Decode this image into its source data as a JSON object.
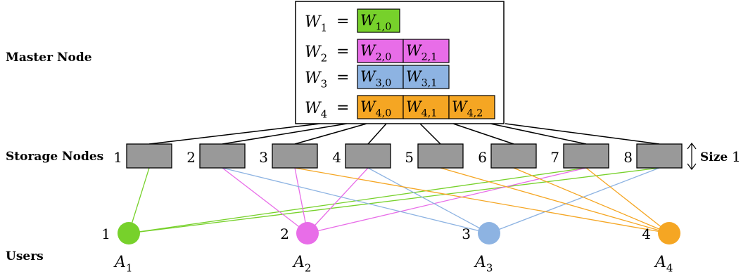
{
  "labels": {
    "master": "Master Node",
    "storage": "Storage Nodes",
    "users": "Users",
    "size_word": "Size",
    "size_value": "1"
  },
  "master_equations": [
    {
      "lhs": "W",
      "lhs_sub": "1",
      "eq": "=",
      "blocks": [
        {
          "base": "W",
          "sub": "1,0"
        }
      ],
      "color": "#77d12b"
    },
    {
      "lhs": "W",
      "lhs_sub": "2",
      "eq": "=",
      "blocks": [
        {
          "base": "W",
          "sub": "2,0"
        },
        {
          "base": "W",
          "sub": "2,1"
        }
      ],
      "color": "#e86de8"
    },
    {
      "lhs": "W",
      "lhs_sub": "3",
      "eq": "=",
      "blocks": [
        {
          "base": "W",
          "sub": "3,0"
        },
        {
          "base": "W",
          "sub": "3,1"
        }
      ],
      "color": "#8db3e2"
    },
    {
      "lhs": "W",
      "lhs_sub": "4",
      "eq": "=",
      "blocks": [
        {
          "base": "W",
          "sub": "4,0"
        },
        {
          "base": "W",
          "sub": "4,1"
        },
        {
          "base": "W",
          "sub": "4,2"
        }
      ],
      "color": "#f5a623"
    }
  ],
  "storage_nodes": [
    "1",
    "2",
    "3",
    "4",
    "5",
    "6",
    "7",
    "8"
  ],
  "users": [
    {
      "number": "1",
      "set": "A",
      "set_sub": "1",
      "color": "#77d12b"
    },
    {
      "number": "2",
      "set": "A",
      "set_sub": "2",
      "color": "#e86de8"
    },
    {
      "number": "3",
      "set": "A",
      "set_sub": "3",
      "color": "#8db3e2"
    },
    {
      "number": "4",
      "set": "A",
      "set_sub": "4",
      "color": "#f5a623"
    }
  ],
  "connections": [
    {
      "user": 1,
      "nodes": [
        1,
        7,
        8
      ]
    },
    {
      "user": 2,
      "nodes": [
        2,
        3,
        4,
        7
      ]
    },
    {
      "user": 3,
      "nodes": [
        2,
        4,
        8
      ]
    },
    {
      "user": 4,
      "nodes": [
        3,
        5,
        6,
        7
      ]
    }
  ],
  "colors": {
    "storage_fill": "#999999",
    "border": "#000000"
  }
}
